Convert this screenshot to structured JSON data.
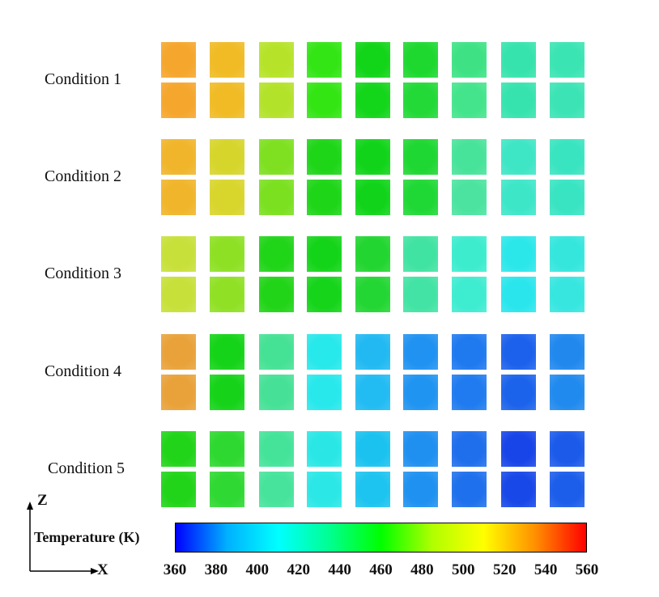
{
  "conditions": [
    {
      "label": "Condition 1",
      "rows": [
        [
          "#f5a62c",
          "#f0bb25",
          "#b6e32a",
          "#33e515",
          "#12d418",
          "#1ed830",
          "#3ee285",
          "#36e3ac",
          "#3be4b3"
        ],
        [
          "#f5a62c",
          "#f0bb25",
          "#b3e22b",
          "#34e514",
          "#13d51a",
          "#22d937",
          "#44e48c",
          "#36e3ae",
          "#3ce4b5"
        ]
      ]
    },
    {
      "label": "Condition 2",
      "rows": [
        [
          "#f0b52a",
          "#d6d52c",
          "#7ee020",
          "#1ed518",
          "#11d41a",
          "#1fd732",
          "#48e39a",
          "#3ee6c6",
          "#39e4c0"
        ],
        [
          "#f0b52a",
          "#d8d52c",
          "#7be020",
          "#1ed518",
          "#11d41a",
          "#20d835",
          "#4be39f",
          "#3ee6c8",
          "#39e4c2"
        ]
      ]
    },
    {
      "label": "Condition 3",
      "rows": [
        [
          "#c8e03a",
          "#8ee025",
          "#20d418",
          "#14d419",
          "#22d530",
          "#41e3a2",
          "#3ceccd",
          "#2ce7ea",
          "#35e6dd"
        ],
        [
          "#c8e03a",
          "#90e025",
          "#22d418",
          "#15d41a",
          "#24d634",
          "#42e3a4",
          "#3eecd0",
          "#2ae6ec",
          "#36e6df"
        ]
      ]
    },
    {
      "label": "Condition 4",
      "rows": [
        [
          "#e9a23a",
          "#15d318",
          "#45e194",
          "#27e8ea",
          "#22b9f2",
          "#2092f1",
          "#1f79ef",
          "#1c61ec",
          "#2188ee"
        ],
        [
          "#e9a23a",
          "#16d31a",
          "#46e196",
          "#28e8eb",
          "#22bbf2",
          "#2094f1",
          "#1f7bef",
          "#1c63ec",
          "#218aee"
        ]
      ]
    },
    {
      "label": "Condition 5",
      "rows": [
        [
          "#22d419",
          "#2ed830",
          "#45e39a",
          "#2ae7e5",
          "#1cc2ef",
          "#1f8ff0",
          "#1f6eec",
          "#1845e8",
          "#1c5bea"
        ],
        [
          "#22d419",
          "#2fd832",
          "#47e39c",
          "#2be7e6",
          "#1dc4ef",
          "#1f91f0",
          "#1f70ec",
          "#1848e8",
          "#1c5dea"
        ]
      ]
    }
  ],
  "colorbar": {
    "title": "Temperature (K)",
    "ticks": [
      "360",
      "380",
      "400",
      "420",
      "440",
      "460",
      "480",
      "500",
      "520",
      "540",
      "560"
    ],
    "stops": [
      "#0000ff",
      "#00b0ff",
      "#00ffff",
      "#00ff90",
      "#00ff00",
      "#b0ff00",
      "#ffff00",
      "#ff9000",
      "#ff0000"
    ]
  },
  "axes": {
    "vertical": "Z",
    "horizontal": "X"
  }
}
